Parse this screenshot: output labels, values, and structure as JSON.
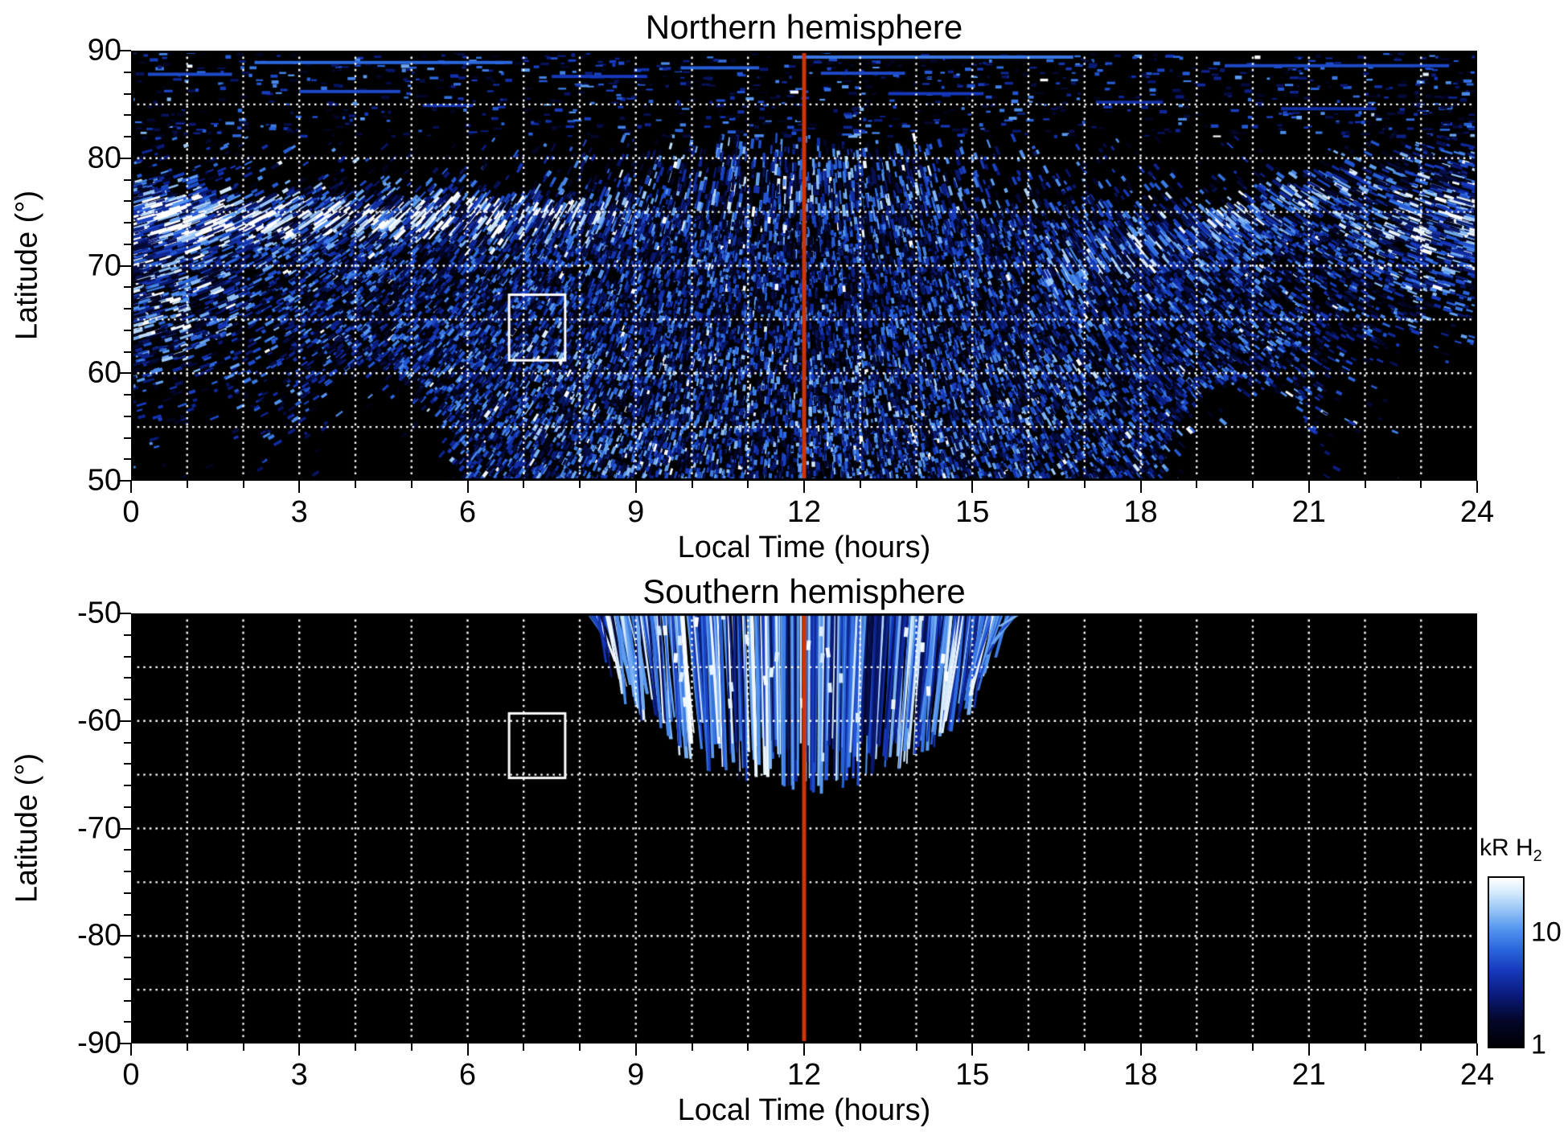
{
  "figure": {
    "background": "#ffffff",
    "text_color": "#000000"
  },
  "style": {
    "noon_line_color": "#cc3505",
    "grid_color": "#ffffff",
    "roi_box_color": "#ffffff",
    "axis_color": "#000000",
    "palette_stops": [
      {
        "t": 0.0,
        "c": "#000003"
      },
      {
        "t": 0.16,
        "c": "#04072b"
      },
      {
        "t": 0.3,
        "c": "#0a1a78"
      },
      {
        "t": 0.45,
        "c": "#1638bc"
      },
      {
        "t": 0.58,
        "c": "#2b68de"
      },
      {
        "t": 0.7,
        "c": "#5596ee"
      },
      {
        "t": 0.82,
        "c": "#9cc8f6"
      },
      {
        "t": 0.92,
        "c": "#d9ecfc"
      },
      {
        "t": 1.0,
        "c": "#ffffff"
      }
    ]
  },
  "chart_data": {
    "type": "heatmap",
    "description": "Two-panel map of auroral H2 emission brightness (kR) versus Local Time (0-24 h) and latitude, northern hemisphere (50 to 90 deg) and southern hemisphere (-50 to -90 deg). Blue/white speckle is emission on black background; vertical orange-red line marks local noon (LT 12); a white rectangle marks a region of interest in each panel; white dotted gridlines every 1 hour and every 5 degrees.",
    "panels": [
      {
        "id": "north",
        "title": "Northern hemisphere",
        "xlabel": "Local Time (hours)",
        "ylabel": "Latitude (°)",
        "x_range": [
          0,
          24
        ],
        "y_range": [
          50,
          90
        ],
        "x_tick_labels": [
          "0",
          "3",
          "6",
          "9",
          "12",
          "15",
          "18",
          "21",
          "24"
        ],
        "y_tick_labels": [
          "90",
          "80",
          "70",
          "60",
          "50"
        ],
        "x_minor_tick_step_hours": 1,
        "y_minor_tick_step_deg": 2,
        "grid_step_x_hours": 1,
        "grid_step_y_deg": 5,
        "noon_meridian_lt": 12,
        "roi_box": {
          "lt_min": 6.74,
          "lt_max": 7.74,
          "lat_min": 61.2,
          "lat_max": 67.3
        },
        "features": [
          {
            "name": "dayside-diffuse-emission",
            "lt_range": [
              4.5,
              19.5
            ],
            "lat_range": [
              50,
              74
            ],
            "typical_kR": [
              1,
              10
            ],
            "texture": "dense speckle of radial dashes"
          },
          {
            "name": "dawn-main-auroral-arc",
            "lt_range": [
              0,
              8.3
            ],
            "lat_range": [
              72,
              77
            ],
            "typical_kR": [
              15,
              30
            ],
            "texture": "bright white band near lat 74-75"
          },
          {
            "name": "dawn-edge-streaks",
            "lt_range": [
              0,
              2.7
            ],
            "lat_range": [
              58,
              80
            ],
            "typical_kR": [
              5,
              25
            ],
            "texture": "bright slanted streaks at left edge"
          },
          {
            "name": "dusk-arcs",
            "lt_range": [
              16.3,
              21.8
            ],
            "lat_range": [
              69,
              83
            ],
            "typical_kR": [
              5,
              20
            ],
            "texture": "curved arc streaks rising toward dusk"
          },
          {
            "name": "dusk-edge-bright-cluster",
            "lt_range": [
              21.3,
              24
            ],
            "lat_range": [
              68,
              82
            ],
            "typical_kR": [
              10,
              30
            ],
            "texture": "bright streak cluster at right edge"
          },
          {
            "name": "noon-polar-streaks",
            "lt_range": [
              9,
              15
            ],
            "lat_range": [
              72,
              82
            ],
            "typical_kR": [
              3,
              15
            ],
            "texture": "streaks fanning around noon above main oval"
          },
          {
            "name": "polar-cap-dashes",
            "lt_range": [
              0,
              24
            ],
            "lat_range": [
              82,
              90
            ],
            "typical_kR": [
              2,
              8
            ],
            "texture": "sparse short horizontal dashes"
          },
          {
            "name": "dawn-data-void",
            "lt_range": [
              3.0,
              5.7
            ],
            "lat_range": [
              50,
              60.5
            ],
            "typical_kR": [
              0,
              0
            ],
            "texture": "black scalloped gap"
          },
          {
            "name": "dusk-data-void",
            "lt_range": [
              18.5,
              21.2
            ],
            "lat_range": [
              50,
              58.5
            ],
            "typical_kR": [
              0,
              0
            ],
            "texture": "black scalloped gap"
          }
        ]
      },
      {
        "id": "south",
        "title": "Southern hemisphere",
        "xlabel": "Local Time (hours)",
        "ylabel": "Latitude (°)",
        "x_range": [
          0,
          24
        ],
        "y_range": [
          -90,
          -50
        ],
        "x_tick_labels": [
          "0",
          "3",
          "6",
          "9",
          "12",
          "15",
          "18",
          "21",
          "24"
        ],
        "y_tick_labels": [
          "-50",
          "-60",
          "-70",
          "-80",
          "-90"
        ],
        "x_minor_tick_step_hours": 1,
        "y_minor_tick_step_deg": 2,
        "grid_step_x_hours": 1,
        "grid_step_y_deg": 5,
        "noon_meridian_lt": 12,
        "roi_box": {
          "lt_min": 6.74,
          "lt_max": 7.74,
          "lat_min": -65.3,
          "lat_max": -59.3
        },
        "features": [
          {
            "name": "noon-fan-emission",
            "lt_range": [
              8.1,
              15.8
            ],
            "lat_range": [
              -64.8,
              -50
            ],
            "typical_kR": [
              3,
              30
            ],
            "texture": "fan of near-vertical stripes converging toward noon with parabolic lower edge"
          },
          {
            "name": "background",
            "lt_range": [
              0,
              24
            ],
            "lat_range": [
              -90,
              -50
            ],
            "typical_kR": [
              0,
              1
            ],
            "texture": "black, no coverage"
          }
        ]
      }
    ],
    "colorbar": {
      "label_main": "kR H",
      "label_sub": "2",
      "scale": "log",
      "min_kR": 1,
      "max_kR": 30,
      "major_ticks": [
        10,
        1
      ],
      "minor_ticks": [
        2,
        3,
        4,
        5,
        6,
        7,
        8,
        9,
        20
      ],
      "orientation": "vertical",
      "position": "right of southern panel"
    }
  }
}
